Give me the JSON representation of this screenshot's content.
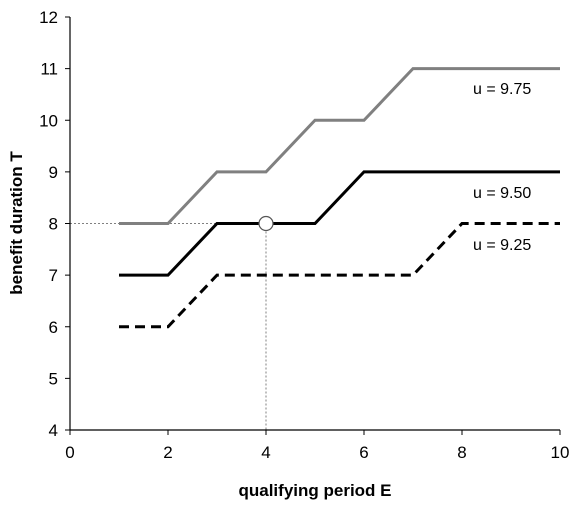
{
  "chart_data": {
    "type": "line",
    "xlabel": "qualifying period E",
    "ylabel": "benefit duration T",
    "xlim": [
      0,
      10
    ],
    "ylim": [
      4,
      12
    ],
    "xticks": [
      0,
      2,
      4,
      6,
      8,
      10
    ],
    "yticks": [
      4,
      5,
      6,
      7,
      8,
      9,
      10,
      11,
      12
    ],
    "grid": false,
    "series": [
      {
        "name": "u = 9.75",
        "style": "solid",
        "color": "#808080",
        "x": [
          1,
          2,
          3,
          4,
          5,
          6,
          7,
          8,
          9,
          10
        ],
        "y": [
          8,
          8,
          9,
          9,
          10,
          10,
          11,
          11,
          11,
          11
        ]
      },
      {
        "name": "u = 9.50",
        "style": "solid",
        "color": "#000000",
        "x": [
          1,
          2,
          3,
          4,
          5,
          6,
          7,
          8,
          9,
          10
        ],
        "y": [
          7,
          7,
          8,
          8,
          8,
          9,
          9,
          9,
          9,
          9
        ]
      },
      {
        "name": "u = 9.25",
        "style": "dashed",
        "color": "#000000",
        "x": [
          1,
          2,
          3,
          4,
          5,
          6,
          7,
          8,
          9,
          10
        ],
        "y": [
          6,
          6,
          7,
          7,
          7,
          7,
          7,
          8,
          8,
          8
        ]
      }
    ],
    "highlight_point": {
      "x": 4,
      "y": 8
    }
  }
}
